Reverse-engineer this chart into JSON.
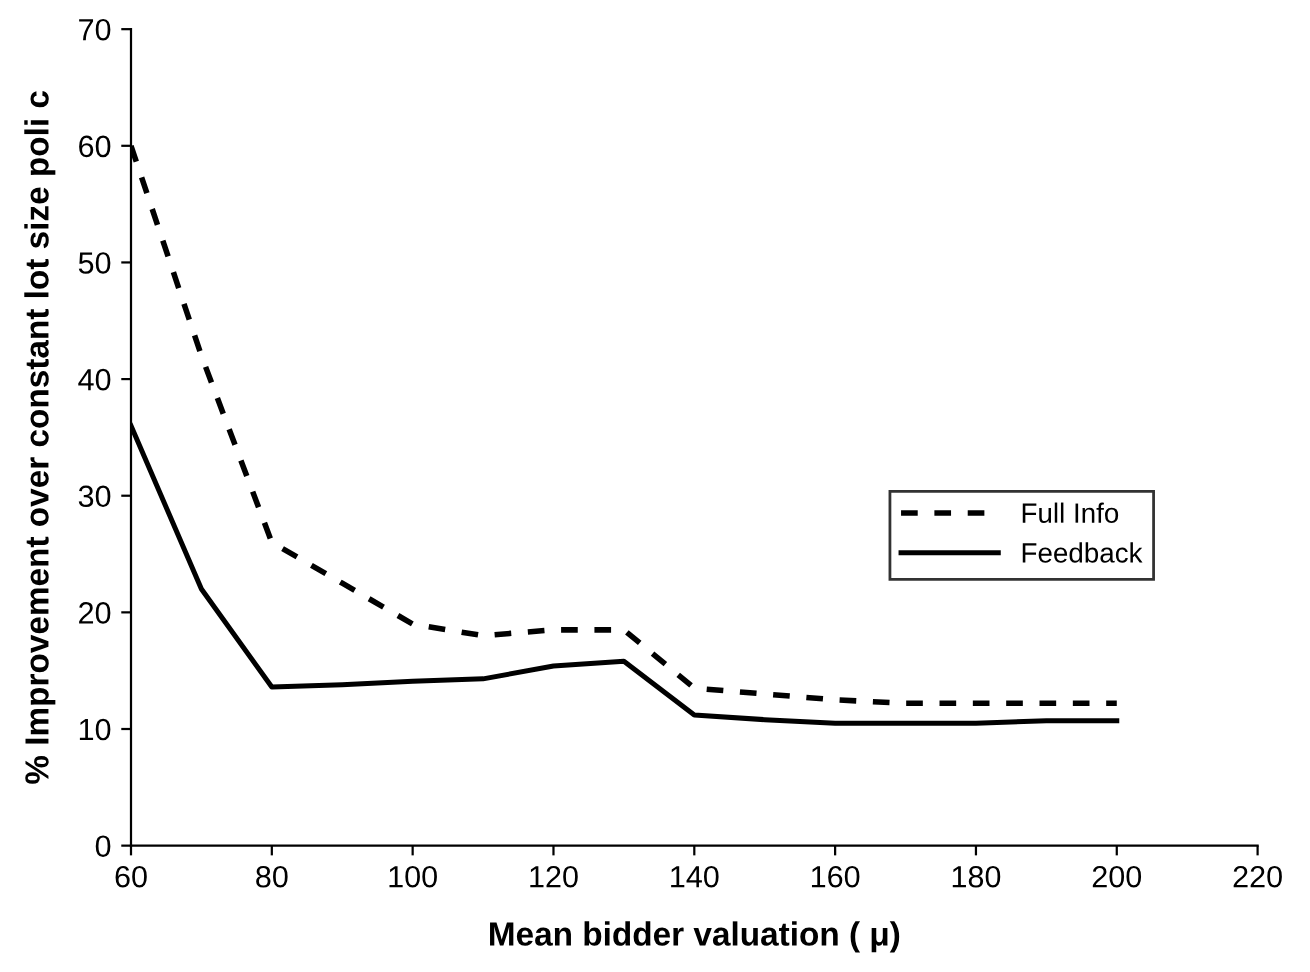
{
  "chart_data": {
    "type": "line",
    "xlabel": "Mean bidder valuation ( μ)",
    "ylabel": "% Improvement over constant lot size poli c",
    "xlim": [
      60,
      220
    ],
    "xticks": [
      60,
      80,
      100,
      120,
      140,
      160,
      180,
      200,
      220
    ],
    "ylim": [
      0,
      70
    ],
    "yticks": [
      0,
      10,
      20,
      30,
      40,
      50,
      60,
      70
    ],
    "grid": false,
    "legend": "center right",
    "marker": "none",
    "series": [
      {
        "name": "Full Info",
        "color": "#000000",
        "line_style": "dashed",
        "x": [
          60,
          70,
          80,
          90,
          100,
          110,
          120,
          130,
          140,
          150,
          160,
          170,
          180,
          190,
          200
        ],
        "values": [
          60,
          42,
          26,
          22.5,
          19,
          18,
          18.5,
          18.5,
          13.5,
          13,
          12.5,
          12.2,
          12.2,
          12.2,
          12.2
        ]
      },
      {
        "name": "Feedback",
        "color": "#000000",
        "line_style": "solid",
        "x": [
          60,
          70,
          80,
          90,
          100,
          110,
          120,
          130,
          140,
          150,
          160,
          170,
          180,
          190,
          200
        ],
        "values": [
          36,
          22,
          13.6,
          13.8,
          14.1,
          14.3,
          15.4,
          15.8,
          11.2,
          10.8,
          10.5,
          10.5,
          10.5,
          10.7,
          10.7
        ]
      }
    ]
  }
}
